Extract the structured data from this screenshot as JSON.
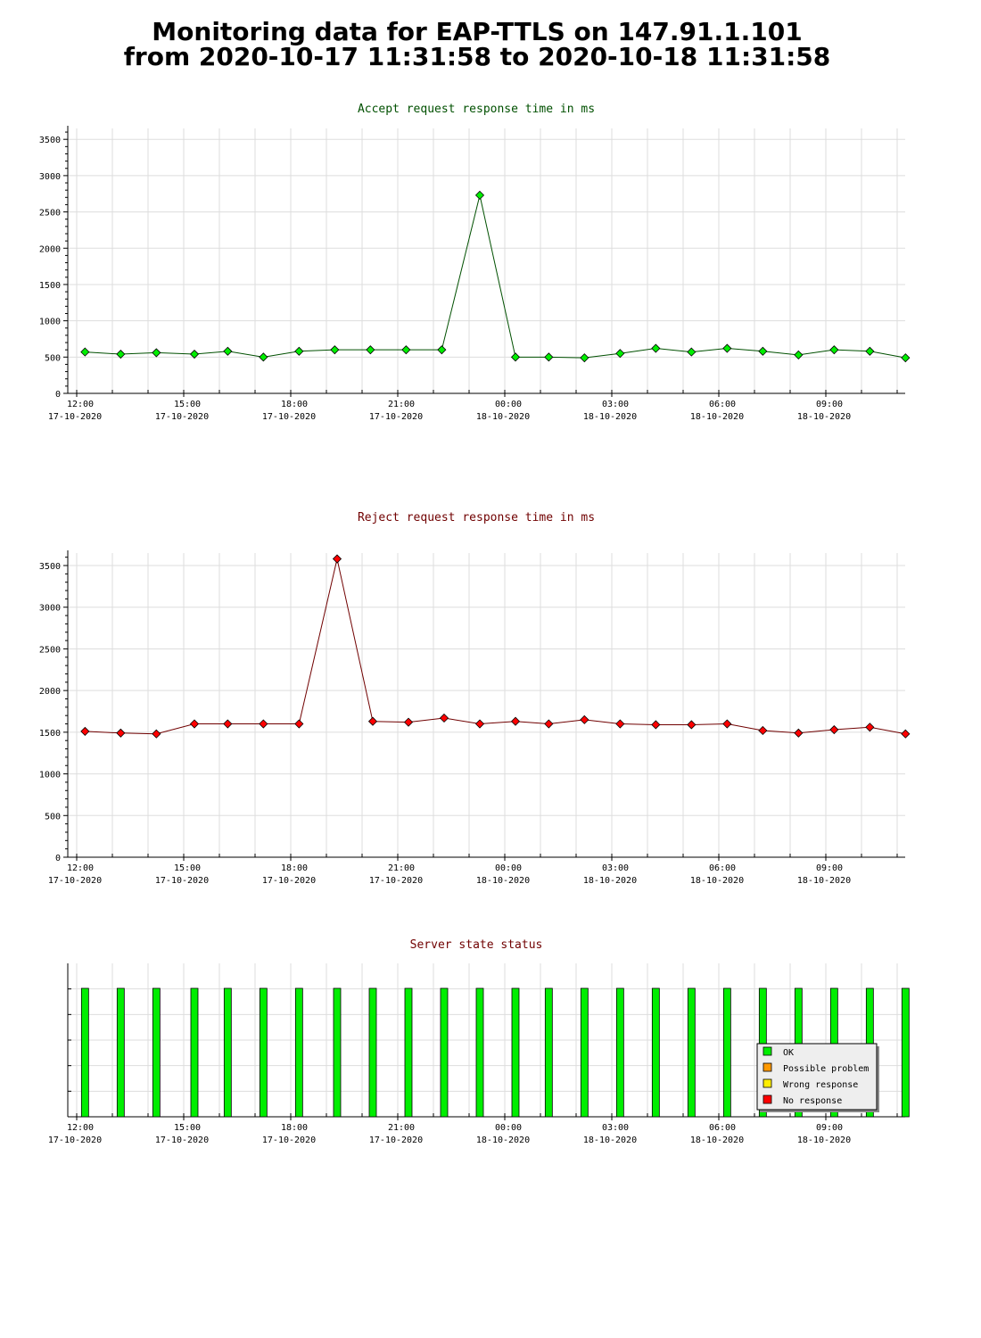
{
  "page": {
    "title_line1": "Monitoring data for EAP-TTLS on 147.91.1.101",
    "title_line2": "from 2020-10-17 11:31:58 to 2020-10-18 11:31:58"
  },
  "colors": {
    "accept_title": "#005000",
    "accept_line": "#005000",
    "accept_marker": "#00ee00",
    "reject_title": "#700000",
    "reject_line": "#700000",
    "reject_marker": "#ff0000",
    "status_title": "#700000",
    "ok": "#00ee00",
    "possible_problem": "#ff9900",
    "wrong_response": "#ffee00",
    "no_response": "#ff0000",
    "grid": "#dddddd",
    "legend_bg": "#eeeeee"
  },
  "x_axis": {
    "ticks": [
      {
        "hour": 12,
        "time": "12:00",
        "date": "17-10-2020"
      },
      {
        "hour": 15,
        "time": "15:00",
        "date": "17-10-2020"
      },
      {
        "hour": 18,
        "time": "18:00",
        "date": "17-10-2020"
      },
      {
        "hour": 21,
        "time": "21:00",
        "date": "17-10-2020"
      },
      {
        "hour": 24,
        "time": "00:00",
        "date": "18-10-2020"
      },
      {
        "hour": 27,
        "time": "03:00",
        "date": "18-10-2020"
      },
      {
        "hour": 30,
        "time": "06:00",
        "date": "18-10-2020"
      },
      {
        "hour": 33,
        "time": "09:00",
        "date": "18-10-2020"
      }
    ]
  },
  "chart_data": [
    {
      "type": "line",
      "title": "Accept request response time in ms",
      "xlabel": "",
      "ylabel": "",
      "xlim": [
        "2020-10-17 12:00",
        "2020-10-18 11:30"
      ],
      "ylim": [
        0,
        3650
      ],
      "yticks": [
        0,
        500,
        1000,
        1500,
        2000,
        2500,
        3000,
        3500
      ],
      "grid": true,
      "series": [
        {
          "points": [
            {
              "x": "2020-10-17 12:14",
              "y": 570
            },
            {
              "x": "2020-10-17 13:14",
              "y": 540
            },
            {
              "x": "2020-10-17 14:14",
              "y": 560
            },
            {
              "x": "2020-10-17 15:18",
              "y": 540
            },
            {
              "x": "2020-10-17 16:14",
              "y": 580
            },
            {
              "x": "2020-10-17 17:14",
              "y": 500
            },
            {
              "x": "2020-10-17 18:14",
              "y": 580
            },
            {
              "x": "2020-10-17 19:14",
              "y": 600
            },
            {
              "x": "2020-10-17 20:14",
              "y": 600
            },
            {
              "x": "2020-10-17 21:14",
              "y": 600
            },
            {
              "x": "2020-10-17 22:14",
              "y": 600
            },
            {
              "x": "2020-10-17 23:18",
              "y": 2730
            },
            {
              "x": "2020-10-18 00:18",
              "y": 500
            },
            {
              "x": "2020-10-18 01:14",
              "y": 500
            },
            {
              "x": "2020-10-18 02:14",
              "y": 490
            },
            {
              "x": "2020-10-18 03:14",
              "y": 550
            },
            {
              "x": "2020-10-18 04:14",
              "y": 620
            },
            {
              "x": "2020-10-18 05:14",
              "y": 570
            },
            {
              "x": "2020-10-18 06:14",
              "y": 620
            },
            {
              "x": "2020-10-18 07:14",
              "y": 580
            },
            {
              "x": "2020-10-18 08:14",
              "y": 530
            },
            {
              "x": "2020-10-18 09:14",
              "y": 600
            },
            {
              "x": "2020-10-18 10:14",
              "y": 580
            },
            {
              "x": "2020-10-18 11:14",
              "y": 490
            }
          ]
        }
      ]
    },
    {
      "type": "line",
      "title": "Reject request response time in ms",
      "xlabel": "",
      "ylabel": "",
      "xlim": [
        "2020-10-17 12:00",
        "2020-10-18 11:30"
      ],
      "ylim": [
        0,
        3650
      ],
      "yticks": [
        0,
        500,
        1000,
        1500,
        2000,
        2500,
        3000,
        3500
      ],
      "grid": true,
      "series": [
        {
          "points": [
            {
              "x": "2020-10-17 12:14",
              "y": 1510
            },
            {
              "x": "2020-10-17 13:14",
              "y": 1490
            },
            {
              "x": "2020-10-17 14:14",
              "y": 1480
            },
            {
              "x": "2020-10-17 15:18",
              "y": 1600
            },
            {
              "x": "2020-10-17 16:14",
              "y": 1600
            },
            {
              "x": "2020-10-17 17:14",
              "y": 1600
            },
            {
              "x": "2020-10-17 18:14",
              "y": 1600
            },
            {
              "x": "2020-10-17 19:18",
              "y": 3580
            },
            {
              "x": "2020-10-17 20:18",
              "y": 1630
            },
            {
              "x": "2020-10-17 21:18",
              "y": 1620
            },
            {
              "x": "2020-10-17 22:18",
              "y": 1670
            },
            {
              "x": "2020-10-17 23:18",
              "y": 1600
            },
            {
              "x": "2020-10-18 00:18",
              "y": 1630
            },
            {
              "x": "2020-10-18 01:14",
              "y": 1600
            },
            {
              "x": "2020-10-18 02:14",
              "y": 1650
            },
            {
              "x": "2020-10-18 03:14",
              "y": 1600
            },
            {
              "x": "2020-10-18 04:14",
              "y": 1590
            },
            {
              "x": "2020-10-18 05:14",
              "y": 1590
            },
            {
              "x": "2020-10-18 06:14",
              "y": 1600
            },
            {
              "x": "2020-10-18 07:14",
              "y": 1520
            },
            {
              "x": "2020-10-18 08:14",
              "y": 1490
            },
            {
              "x": "2020-10-18 09:14",
              "y": 1530
            },
            {
              "x": "2020-10-18 10:14",
              "y": 1560
            },
            {
              "x": "2020-10-18 11:14",
              "y": 1480
            }
          ]
        }
      ]
    },
    {
      "type": "bar",
      "title": "Server state status",
      "xlabel": "",
      "ylabel": "",
      "xlim": [
        "2020-10-17 12:00",
        "2020-10-18 11:30"
      ],
      "legend_position": "bottom-right",
      "legend": [
        {
          "label": "OK",
          "color_key": "ok"
        },
        {
          "label": "Possible problem",
          "color_key": "possible_problem"
        },
        {
          "label": "Wrong response",
          "color_key": "wrong_response"
        },
        {
          "label": "No response",
          "color_key": "no_response"
        }
      ],
      "series": [
        {
          "name": "OK",
          "x": [
            "2020-10-17 12:14",
            "2020-10-17 13:14",
            "2020-10-17 14:14",
            "2020-10-17 15:18",
            "2020-10-17 16:14",
            "2020-10-17 17:14",
            "2020-10-17 18:14",
            "2020-10-17 19:18",
            "2020-10-17 20:18",
            "2020-10-17 21:18",
            "2020-10-17 22:18",
            "2020-10-17 23:18",
            "2020-10-18 00:18",
            "2020-10-18 01:14",
            "2020-10-18 02:14",
            "2020-10-18 03:14",
            "2020-10-18 04:14",
            "2020-10-18 05:14",
            "2020-10-18 06:14",
            "2020-10-18 07:14",
            "2020-10-18 08:14",
            "2020-10-18 09:14",
            "2020-10-18 10:14",
            "2020-10-18 11:14"
          ],
          "state": "OK"
        }
      ]
    }
  ]
}
